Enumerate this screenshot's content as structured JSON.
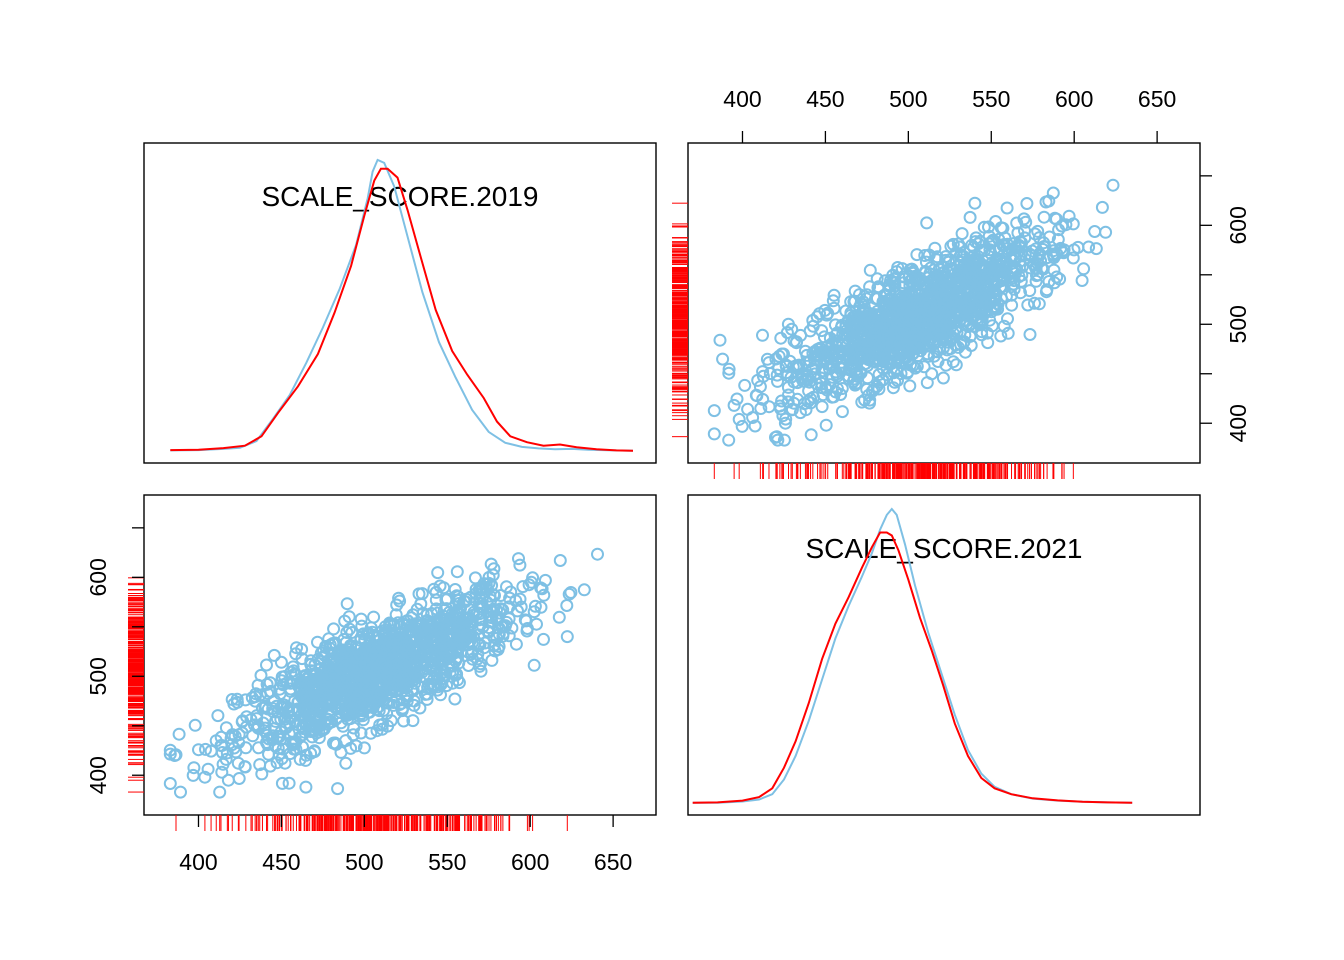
{
  "chart_data": {
    "type": "scatter",
    "layout": "scatterplot-matrix",
    "variables": [
      "SCALE_SCORE.2019",
      "SCALE_SCORE.2021"
    ],
    "colors": {
      "points": "#7ec0e4",
      "density_line_a": "#7ec0e4",
      "density_line_b": "#ff0000",
      "rug": "#ff0000"
    },
    "axis_range": [
      378,
      665
    ],
    "ticks": [
      400,
      450,
      500,
      550,
      600,
      650
    ],
    "y_ticks": [
      400,
      500,
      600
    ],
    "density_2019": {
      "blue": [
        [
          383,
          0.002
        ],
        [
          400,
          0.003
        ],
        [
          415,
          0.007
        ],
        [
          425,
          0.011
        ],
        [
          435,
          0.034
        ],
        [
          445,
          0.11
        ],
        [
          455,
          0.19
        ],
        [
          465,
          0.3
        ],
        [
          475,
          0.42
        ],
        [
          485,
          0.55
        ],
        [
          495,
          0.7
        ],
        [
          502,
          0.86
        ],
        [
          505,
          0.95
        ],
        [
          508,
          0.99
        ],
        [
          512,
          0.98
        ],
        [
          518,
          0.9
        ],
        [
          526,
          0.73
        ],
        [
          535,
          0.54
        ],
        [
          545,
          0.37
        ],
        [
          555,
          0.25
        ],
        [
          565,
          0.14
        ],
        [
          575,
          0.065
        ],
        [
          585,
          0.028
        ],
        [
          595,
          0.014
        ],
        [
          605,
          0.009
        ],
        [
          615,
          0.006
        ],
        [
          625,
          0.007
        ],
        [
          635,
          0.004
        ],
        [
          650,
          0.002
        ],
        [
          662,
          0.001
        ]
      ],
      "red": [
        [
          383,
          0.003
        ],
        [
          400,
          0.004
        ],
        [
          415,
          0.01
        ],
        [
          428,
          0.018
        ],
        [
          438,
          0.05
        ],
        [
          448,
          0.13
        ],
        [
          460,
          0.22
        ],
        [
          472,
          0.33
        ],
        [
          482,
          0.47
        ],
        [
          492,
          0.63
        ],
        [
          500,
          0.8
        ],
        [
          506,
          0.92
        ],
        [
          510,
          0.96
        ],
        [
          514,
          0.96
        ],
        [
          520,
          0.93
        ],
        [
          526,
          0.82
        ],
        [
          534,
          0.66
        ],
        [
          543,
          0.48
        ],
        [
          553,
          0.34
        ],
        [
          562,
          0.26
        ],
        [
          572,
          0.18
        ],
        [
          580,
          0.1
        ],
        [
          588,
          0.05
        ],
        [
          598,
          0.03
        ],
        [
          608,
          0.018
        ],
        [
          618,
          0.022
        ],
        [
          628,
          0.013
        ],
        [
          640,
          0.006
        ],
        [
          652,
          0.002
        ],
        [
          662,
          0.001
        ]
      ]
    },
    "density_2021": {
      "blue": [
        [
          370,
          0.001
        ],
        [
          385,
          0.001
        ],
        [
          400,
          0.005
        ],
        [
          410,
          0.012
        ],
        [
          418,
          0.03
        ],
        [
          425,
          0.08
        ],
        [
          432,
          0.16
        ],
        [
          440,
          0.28
        ],
        [
          448,
          0.42
        ],
        [
          456,
          0.56
        ],
        [
          464,
          0.67
        ],
        [
          472,
          0.77
        ],
        [
          478,
          0.85
        ],
        [
          483,
          0.93
        ],
        [
          487,
          0.98
        ],
        [
          490,
          1.0
        ],
        [
          493,
          0.98
        ],
        [
          498,
          0.88
        ],
        [
          504,
          0.74
        ],
        [
          512,
          0.58
        ],
        [
          520,
          0.44
        ],
        [
          528,
          0.3
        ],
        [
          536,
          0.18
        ],
        [
          544,
          0.1
        ],
        [
          552,
          0.055
        ],
        [
          562,
          0.03
        ],
        [
          575,
          0.015
        ],
        [
          590,
          0.008
        ],
        [
          605,
          0.004
        ],
        [
          620,
          0.002
        ],
        [
          635,
          0.001
        ]
      ],
      "red": [
        [
          370,
          0.001
        ],
        [
          385,
          0.002
        ],
        [
          400,
          0.008
        ],
        [
          410,
          0.02
        ],
        [
          418,
          0.05
        ],
        [
          425,
          0.12
        ],
        [
          432,
          0.21
        ],
        [
          440,
          0.34
        ],
        [
          448,
          0.49
        ],
        [
          456,
          0.61
        ],
        [
          464,
          0.7
        ],
        [
          472,
          0.8
        ],
        [
          478,
          0.87
        ],
        [
          483,
          0.92
        ],
        [
          487,
          0.92
        ],
        [
          490,
          0.91
        ],
        [
          494,
          0.86
        ],
        [
          500,
          0.76
        ],
        [
          507,
          0.63
        ],
        [
          514,
          0.52
        ],
        [
          521,
          0.4
        ],
        [
          528,
          0.27
        ],
        [
          536,
          0.16
        ],
        [
          544,
          0.085
        ],
        [
          552,
          0.05
        ],
        [
          562,
          0.03
        ],
        [
          575,
          0.016
        ],
        [
          590,
          0.009
        ],
        [
          605,
          0.004
        ],
        [
          620,
          0.002
        ],
        [
          635,
          0.001
        ]
      ]
    },
    "scatter": {
      "n_points": 1400,
      "x_center": 508,
      "x_sd": 42,
      "y_center": 505,
      "y_sd": 40,
      "correlation": 0.78
    },
    "diag_labels": {
      "top_left": "SCALE_SCORE.2019",
      "bottom_right": "SCALE_SCORE.2021"
    }
  }
}
